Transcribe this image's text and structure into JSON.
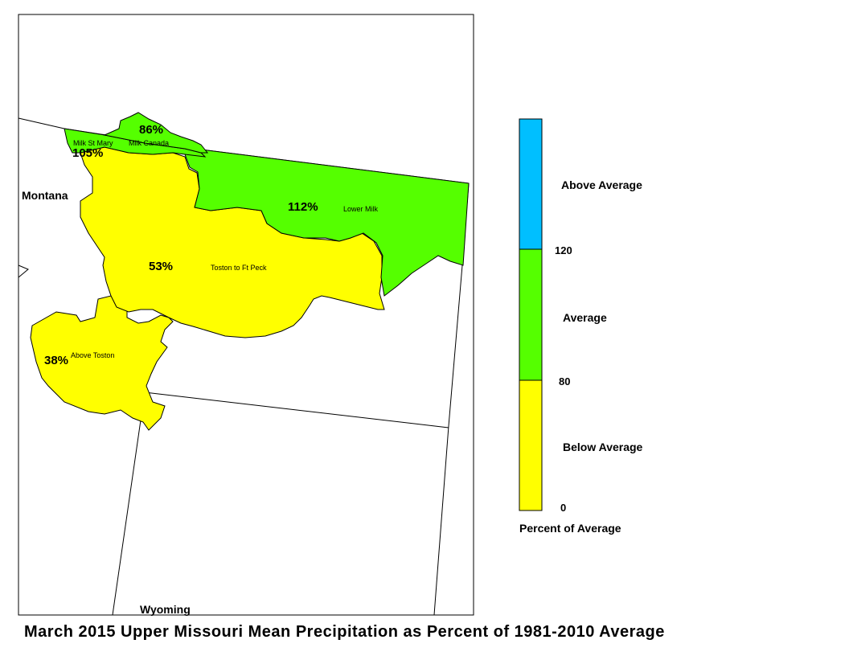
{
  "title": "March 2015 Upper Missouri Mean Precipitation as Percent of 1981-2010 Average",
  "states": {
    "montana": "Montana",
    "wyoming": "Wyoming"
  },
  "colors": {
    "above": "#00BFFF",
    "average": "#55FF00",
    "below": "#FFFF00",
    "outline": "#000000"
  },
  "basins": {
    "milk_st_mary": {
      "name": "Milk St Mary",
      "pct": "105%",
      "category": "average"
    },
    "milk_canada": {
      "name": "Milk Canada",
      "pct": "86%",
      "category": "average"
    },
    "lower_milk": {
      "name": "Lower Milk",
      "pct": "112%",
      "category": "average"
    },
    "toston_ft_peck": {
      "name": "Toston to Ft Peck",
      "pct": "53%",
      "category": "below"
    },
    "above_toston": {
      "name": "Above Toston",
      "pct": "38%",
      "category": "below"
    }
  },
  "legend": {
    "categories": [
      "Above Average",
      "Average",
      "Below Average"
    ],
    "ticks": [
      "120",
      "80",
      "0"
    ],
    "caption": "Percent of Average"
  }
}
